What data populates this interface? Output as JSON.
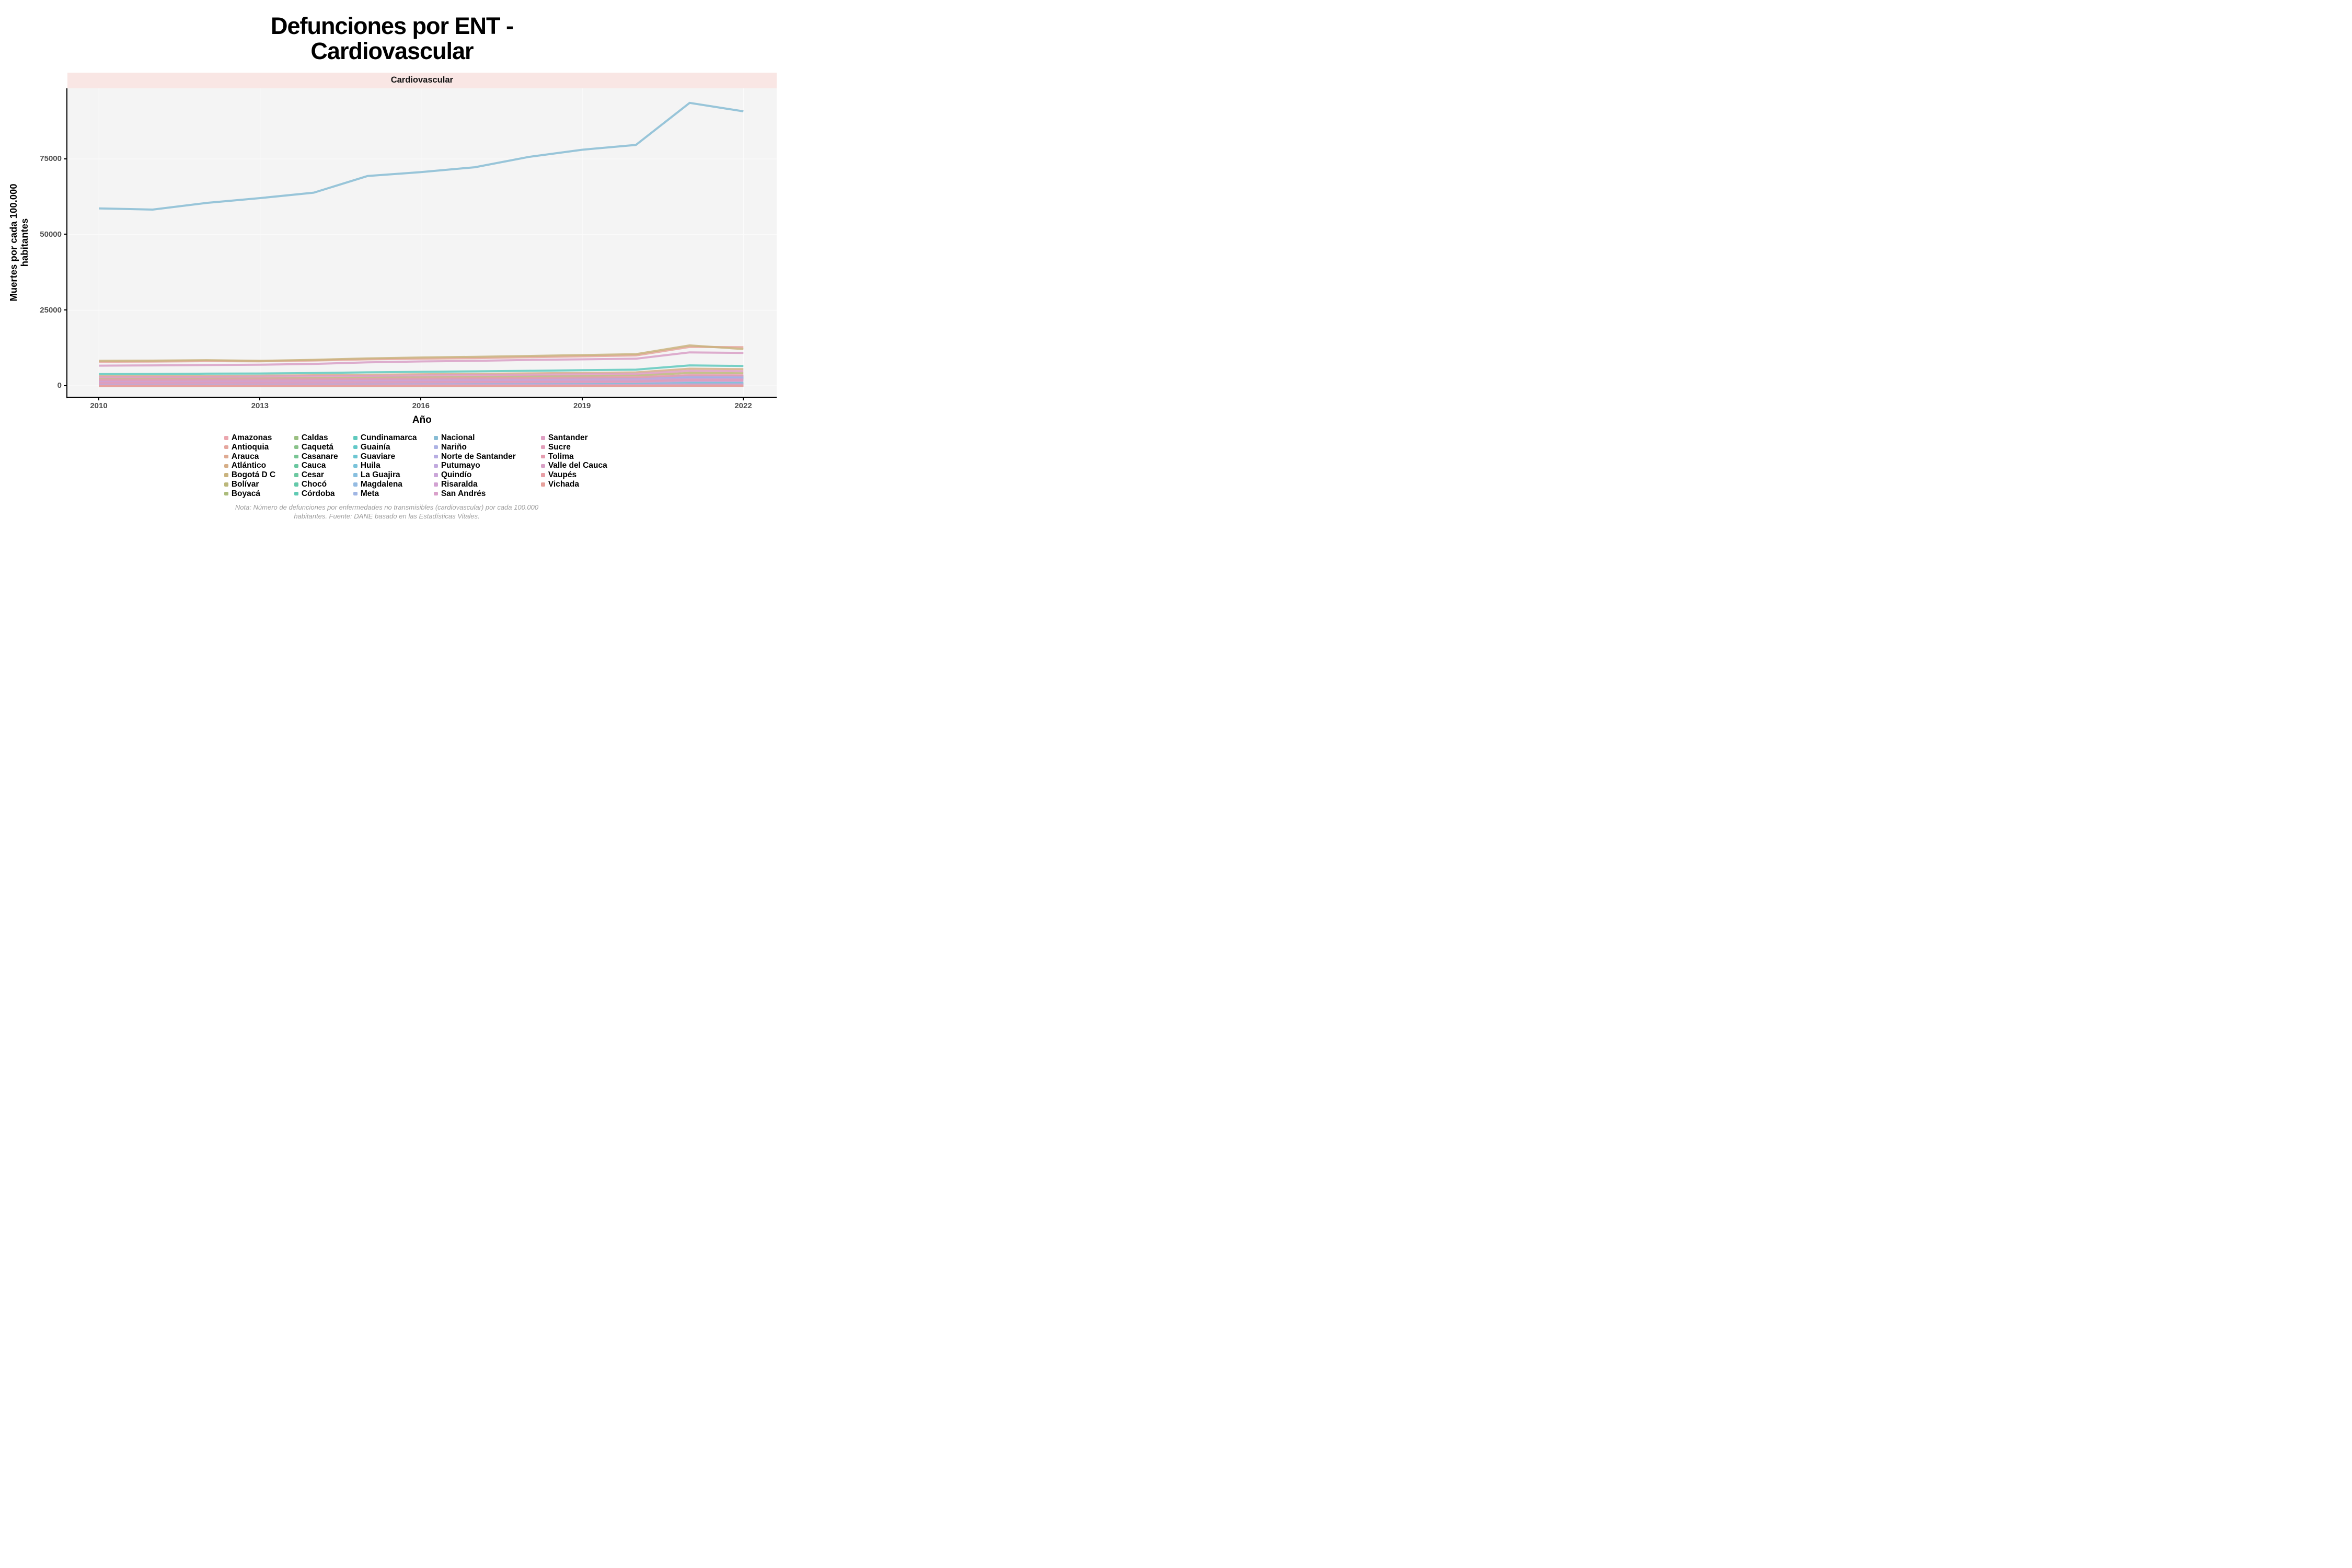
{
  "title": {
    "line1": "Defunciones por ENT -",
    "line2": "Cardiovascular"
  },
  "facet": {
    "label": "Cardiovascular"
  },
  "y_axis": {
    "title_line1": "Muertes por cada 100.000",
    "title_line2": "habitantes",
    "ticks": [
      "0",
      "25000",
      "50000",
      "75000"
    ]
  },
  "x_axis": {
    "title": "Año",
    "ticks": [
      "2010",
      "2013",
      "2016",
      "2019",
      "2022"
    ]
  },
  "note": {
    "line1": "Nota: Número de defunciones por enfermedades no transmisibles (cardiovascular) por cada 100.000",
    "line2": "habitantes. Fuente: DANE basado en las Estadísticas Vitales."
  },
  "colors": {
    "strip_bg": "#F9E6E4",
    "panel_bg": "#F4F4F4",
    "grid": "#FBFBFB",
    "axis": "#000000",
    "tick_label": "#4D4D4D",
    "note_text": "#9B9B9B"
  },
  "chart_data": {
    "type": "line",
    "title": "Defunciones por ENT - Cardiovascular",
    "xlabel": "Año",
    "ylabel": "Muertes por cada 100.000 habitantes",
    "x": [
      2010,
      2011,
      2012,
      2013,
      2014,
      2015,
      2016,
      2017,
      2018,
      2019,
      2020,
      2021,
      2022
    ],
    "xlim": [
      2010,
      2022
    ],
    "ylim": [
      0,
      98400
    ],
    "grid": true,
    "legend_position": "bottom",
    "series": [
      {
        "name": "Amazonas",
        "color": "#EBA6AE",
        "values": [
          80,
          82,
          85,
          88,
          92,
          96,
          100,
          105,
          110,
          116,
          122,
          150,
          145
        ]
      },
      {
        "name": "Antioquia",
        "color": "#E5A69D",
        "values": [
          8000,
          8050,
          8200,
          8150,
          8400,
          8800,
          9000,
          9200,
          9500,
          9800,
          10100,
          12900,
          12800
        ]
      },
      {
        "name": "Arauca",
        "color": "#DFAA92",
        "values": [
          250,
          255,
          262,
          270,
          280,
          292,
          305,
          318,
          332,
          348,
          365,
          480,
          465
        ]
      },
      {
        "name": "Atlántico",
        "color": "#D6AE87",
        "values": [
          3200,
          3250,
          3340,
          3400,
          3520,
          3700,
          3850,
          4000,
          4150,
          4300,
          4480,
          5700,
          5550
        ]
      },
      {
        "name": "Bogotá D C",
        "color": "#C9B37E",
        "values": [
          8300,
          8360,
          8520,
          8300,
          8620,
          9100,
          9400,
          9620,
          9900,
          10200,
          10500,
          13400,
          12200
        ]
      },
      {
        "name": "Bolívar",
        "color": "#BBB77A",
        "values": [
          2400,
          2440,
          2500,
          2560,
          2650,
          2790,
          2900,
          3010,
          3150,
          3300,
          3450,
          4300,
          4200
        ]
      },
      {
        "name": "Boyacá",
        "color": "#ABBB7A",
        "values": [
          1900,
          1930,
          1980,
          2030,
          2100,
          2200,
          2290,
          2380,
          2480,
          2590,
          2700,
          3400,
          3300
        ]
      },
      {
        "name": "Caldas",
        "color": "#9ABF80",
        "values": [
          1600,
          1620,
          1660,
          1700,
          1760,
          1840,
          1910,
          1980,
          2060,
          2150,
          2240,
          2700,
          2600
        ]
      },
      {
        "name": "Caquetá",
        "color": "#89C289",
        "values": [
          400,
          408,
          420,
          432,
          448,
          468,
          488,
          510,
          532,
          556,
          580,
          820,
          800
        ]
      },
      {
        "name": "Casanare",
        "color": "#78C593",
        "values": [
          350,
          357,
          368,
          380,
          394,
          412,
          430,
          450,
          470,
          492,
          515,
          720,
          700
        ]
      },
      {
        "name": "Cauca",
        "color": "#6AC79F",
        "values": [
          1400,
          1425,
          1465,
          1505,
          1560,
          1635,
          1705,
          1775,
          1855,
          1940,
          2030,
          2750,
          2700
        ]
      },
      {
        "name": "Cesar",
        "color": "#6CC8A0",
        "values": [
          1200,
          1222,
          1258,
          1295,
          1345,
          1410,
          1472,
          1535,
          1605,
          1680,
          1760,
          2450,
          2400
        ]
      },
      {
        "name": "Chocó",
        "color": "#64C9A9",
        "values": [
          450,
          459,
          473,
          488,
          506,
          530,
          553,
          577,
          604,
          632,
          662,
          920,
          900
        ]
      },
      {
        "name": "Córdoba",
        "color": "#5FCAB3",
        "values": [
          1700,
          1730,
          1778,
          1828,
          1895,
          1985,
          2070,
          2155,
          2250,
          2352,
          2460,
          3150,
          3100
        ]
      },
      {
        "name": "Cundinamarca",
        "color": "#5FC9BD",
        "values": [
          3900,
          3960,
          4060,
          4120,
          4260,
          4500,
          4660,
          4820,
          5000,
          5200,
          5400,
          6800,
          6600
        ]
      },
      {
        "name": "Guainía",
        "color": "#62C8C8",
        "values": [
          30,
          31,
          32,
          34,
          36,
          38,
          40,
          42,
          45,
          48,
          51,
          72,
          70
        ]
      },
      {
        "name": "Guaviare",
        "color": "#6CC6D2",
        "values": [
          70,
          72,
          74,
          77,
          80,
          84,
          88,
          92,
          97,
          102,
          108,
          145,
          140
        ]
      },
      {
        "name": "Huila",
        "color": "#79C3DA",
        "values": [
          1300,
          1324,
          1362,
          1402,
          1455,
          1525,
          1592,
          1660,
          1735,
          1815,
          1900,
          2560,
          2500
        ]
      },
      {
        "name": "La Guajira",
        "color": "#87BFDF",
        "values": [
          500,
          510,
          526,
          543,
          565,
          593,
          620,
          648,
          680,
          713,
          748,
          1230,
          1200
        ]
      },
      {
        "name": "Magdalena",
        "color": "#94BBE2",
        "values": [
          1300,
          1325,
          1364,
          1405,
          1460,
          1532,
          1600,
          1670,
          1748,
          1830,
          1915,
          2650,
          2600
        ]
      },
      {
        "name": "Meta",
        "color": "#A0B6E4",
        "values": [
          1000,
          1020,
          1052,
          1085,
          1130,
          1188,
          1243,
          1300,
          1363,
          1430,
          1500,
          2050,
          2000
        ]
      },
      {
        "name": "Nacional",
        "color": "#87BCD4",
        "values": [
          58700,
          58300,
          60500,
          62100,
          63900,
          69400,
          70700,
          72300,
          75700,
          78100,
          79700,
          93600,
          90800
        ]
      },
      {
        "name": "Nariño",
        "color": "#ACB2E4",
        "values": [
          1600,
          1628,
          1672,
          1718,
          1780,
          1862,
          1940,
          2018,
          2105,
          2198,
          2295,
          3100,
          3000
        ]
      },
      {
        "name": "Norte de Santander",
        "color": "#B7ADE2",
        "values": [
          1800,
          1832,
          1882,
          1933,
          2002,
          2094,
          2180,
          2268,
          2366,
          2470,
          2580,
          3400,
          3300
        ]
      },
      {
        "name": "Putumayo",
        "color": "#C1A9DE",
        "values": [
          250,
          256,
          265,
          274,
          286,
          301,
          315,
          330,
          346,
          363,
          382,
          560,
          550
        ]
      },
      {
        "name": "Quindío",
        "color": "#CAA5D8",
        "values": [
          900,
          915,
          940,
          965,
          1000,
          1045,
          1088,
          1132,
          1182,
          1235,
          1292,
          1650,
          1600
        ]
      },
      {
        "name": "Risaralda",
        "color": "#D2A2D2",
        "values": [
          1400,
          1424,
          1462,
          1500,
          1552,
          1620,
          1685,
          1750,
          1824,
          1902,
          1985,
          2350,
          2300
        ]
      },
      {
        "name": "San Andrés",
        "color": "#D9A0CA",
        "values": [
          120,
          122,
          126,
          130,
          135,
          141,
          148,
          155,
          162,
          170,
          178,
          230,
          220
        ]
      },
      {
        "name": "Santander",
        "color": "#DE9EC2",
        "values": [
          2900,
          2950,
          3030,
          3100,
          3210,
          3360,
          3460,
          3560,
          3710,
          3860,
          4010,
          5000,
          4880
        ]
      },
      {
        "name": "Sucre",
        "color": "#E29DB9",
        "values": [
          1000,
          1018,
          1046,
          1075,
          1115,
          1166,
          1215,
          1264,
          1320,
          1380,
          1442,
          1950,
          1900
        ]
      },
      {
        "name": "Tolima",
        "color": "#E59DB0",
        "values": [
          2000,
          2035,
          2090,
          2148,
          2225,
          2328,
          2425,
          2520,
          2630,
          2745,
          2865,
          3600,
          3500
        ]
      },
      {
        "name": "Valle del Cauca",
        "color": "#D89FC5",
        "values": [
          6700,
          6790,
          6920,
          7010,
          7300,
          7800,
          8100,
          8300,
          8600,
          8800,
          9000,
          11100,
          10900
        ]
      },
      {
        "name": "Vaupés",
        "color": "#E89EA5",
        "values": [
          20,
          21,
          22,
          23,
          24,
          25,
          27,
          28,
          30,
          32,
          34,
          45,
          42
        ]
      },
      {
        "name": "Vichada",
        "color": "#E7A19C",
        "values": [
          40,
          41,
          43,
          45,
          47,
          50,
          52,
          55,
          58,
          61,
          65,
          92,
          88
        ]
      }
    ]
  }
}
